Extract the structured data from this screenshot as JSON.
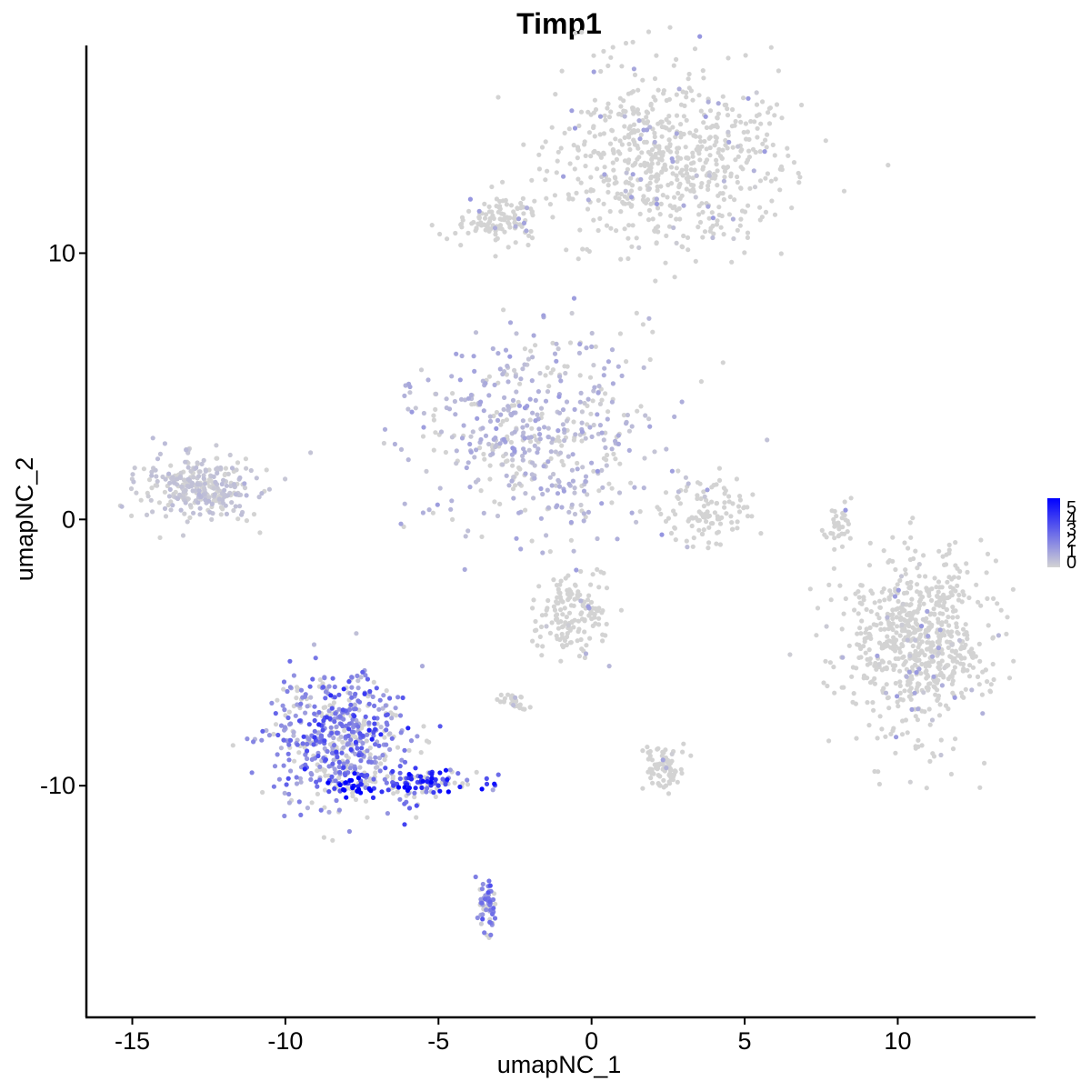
{
  "chart_data": {
    "type": "scatter",
    "title": "Timp1",
    "xlabel": "umapNC_1",
    "ylabel": "umapNC_2",
    "xlim": [
      -16.5,
      14.5
    ],
    "ylim": [
      -18.7,
      17.8
    ],
    "x_ticks": [
      -15,
      -10,
      -5,
      0,
      5,
      10
    ],
    "x_tick_labels": [
      "-15",
      "-10",
      "-5",
      "0",
      "5",
      "10"
    ],
    "y_ticks": [
      -10,
      0,
      10
    ],
    "y_tick_labels": [
      "-10",
      "0",
      "10"
    ],
    "grid": false,
    "color_scale": {
      "low_color": "#d3d3d3",
      "high_color": "#0000ff",
      "min": 0,
      "max": 5,
      "legend_labels": [
        "5",
        "4",
        "3",
        "2",
        "1",
        "0"
      ],
      "legend_placement": "right"
    },
    "clusters": [
      {
        "cx": 2.7,
        "cy": 13.5,
        "sx": 2.0,
        "sy": 1.6,
        "n": 700,
        "expr": 0.05
      },
      {
        "cx": -3.0,
        "cy": 11.2,
        "sx": 0.8,
        "sy": 0.5,
        "n": 120,
        "expr": 0.1
      },
      {
        "cx": -1.9,
        "cy": 3.2,
        "sx": 2.0,
        "sy": 1.9,
        "n": 520,
        "expr": 0.7
      },
      {
        "cx": -12.8,
        "cy": 1.2,
        "sx": 1.0,
        "sy": 0.6,
        "n": 300,
        "expr": 0.35
      },
      {
        "cx": 3.8,
        "cy": 0.1,
        "sx": 0.9,
        "sy": 0.6,
        "n": 110,
        "expr": 0.05
      },
      {
        "cx": 10.7,
        "cy": -4.6,
        "sx": 1.2,
        "sy": 1.6,
        "n": 720,
        "expr": 0.02
      },
      {
        "cx": -0.6,
        "cy": -3.6,
        "sx": 0.6,
        "sy": 0.8,
        "n": 160,
        "expr": 0.05
      },
      {
        "cx": -8.3,
        "cy": -8.2,
        "sx": 1.1,
        "sy": 1.2,
        "n": 560,
        "expr": 1.9
      },
      {
        "cx": -5.3,
        "cy": -9.9,
        "sx": 0.9,
        "sy": 0.3,
        "n": 120,
        "expr": 3.2
      },
      {
        "cx": -7.8,
        "cy": -10.0,
        "sx": 0.5,
        "sy": 0.2,
        "n": 40,
        "expr": 4.6
      },
      {
        "cx": 2.4,
        "cy": -9.3,
        "sx": 0.3,
        "sy": 0.4,
        "n": 90,
        "expr": 0.1
      },
      {
        "cx": -3.4,
        "cy": -14.6,
        "sx": 0.15,
        "sy": 0.6,
        "n": 55,
        "expr": 2.0
      },
      {
        "cx": -2.5,
        "cy": -6.9,
        "sx": 0.25,
        "sy": 0.2,
        "n": 30,
        "expr": 0.1
      },
      {
        "cx": 8.1,
        "cy": -0.3,
        "sx": 0.2,
        "sy": 0.5,
        "n": 35,
        "expr": 0.05
      }
    ]
  }
}
